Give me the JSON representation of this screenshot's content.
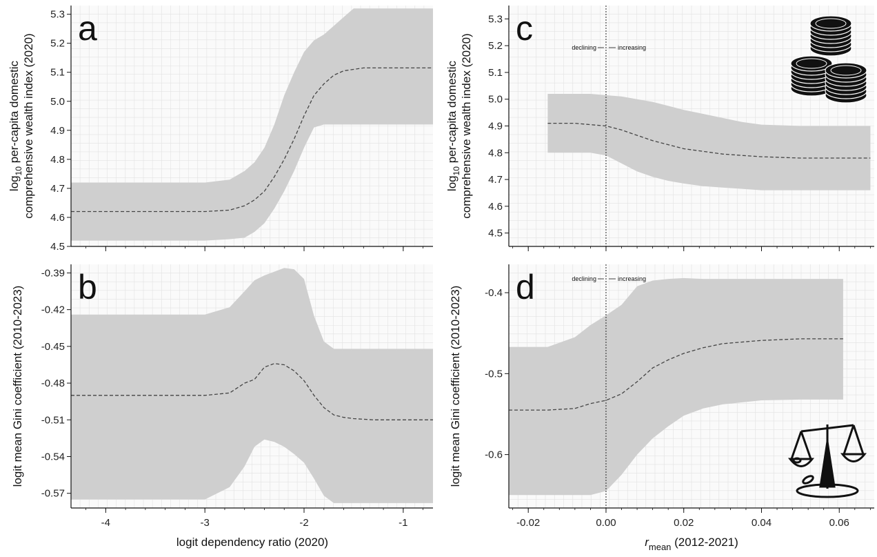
{
  "colors": {
    "band": "#cfcfcf",
    "line": "#444444",
    "grid": "#e2e2e2",
    "axis": "#111111",
    "background": "#fafafa"
  },
  "x_labels": {
    "left": "logit dependency ratio (2020)",
    "right_italic": "r",
    "right_sub": "mean",
    "right_tail": " (2012-2021)"
  },
  "annotations": {
    "declining": "declining",
    "increasing": "increasing"
  },
  "icons": {
    "coins": "coin-stack-icon",
    "scale": "balance-scale-icon"
  },
  "chart_data": [
    {
      "id": "a",
      "letter": "a",
      "type": "line",
      "xlim": [
        -4.35,
        -0.7
      ],
      "ylim": [
        4.5,
        5.33
      ],
      "xticks": [
        -4,
        -3,
        -2,
        -1
      ],
      "show_xticklabels": false,
      "yticks": [
        4.5,
        4.6,
        4.7,
        4.8,
        4.9,
        5.0,
        5.1,
        5.2,
        5.3
      ],
      "yticklabels": [
        "4.5",
        "4.6",
        "4.7",
        "4.8",
        "4.9",
        "5.0",
        "5.1",
        "5.2",
        "5.3"
      ],
      "ylabel": "log10 per-capita domestic comprehensive wealth index (2020)",
      "ylabel_line1": "log",
      "ylabel_sub": "10",
      "ylabel_rest": " per-capita domestic",
      "ylabel_line2": "comprehensive wealth index (2020)",
      "vline": null,
      "x": [
        -4.35,
        -3.0,
        -2.75,
        -2.6,
        -2.5,
        -2.4,
        -2.3,
        -2.2,
        -2.1,
        -2.0,
        -1.9,
        -1.8,
        -1.7,
        -1.6,
        -1.5,
        -1.4,
        -1.2,
        -1.0,
        -0.7
      ],
      "mean": [
        4.62,
        4.62,
        4.625,
        4.64,
        4.66,
        4.69,
        4.74,
        4.8,
        4.87,
        4.95,
        5.02,
        5.06,
        5.09,
        5.105,
        5.11,
        5.115,
        5.115,
        5.115,
        5.115
      ],
      "upper": [
        4.72,
        4.72,
        4.73,
        4.76,
        4.79,
        4.84,
        4.92,
        5.02,
        5.1,
        5.17,
        5.21,
        5.23,
        5.26,
        5.29,
        5.32,
        5.32,
        5.32,
        5.32,
        5.32
      ],
      "lower": [
        4.52,
        4.52,
        4.525,
        4.53,
        4.55,
        4.58,
        4.63,
        4.69,
        4.76,
        4.84,
        4.91,
        4.92,
        4.92,
        4.92,
        4.92,
        4.92,
        4.92,
        4.92,
        4.92
      ]
    },
    {
      "id": "b",
      "letter": "b",
      "type": "line",
      "xlim": [
        -4.35,
        -0.7
      ],
      "ylim": [
        -0.582,
        -0.383
      ],
      "xticks": [
        -4,
        -3,
        -2,
        -1
      ],
      "show_xticklabels": true,
      "xticklabels": [
        "-4",
        "-3",
        "-2",
        "-1"
      ],
      "yticks": [
        -0.57,
        -0.54,
        -0.51,
        -0.48,
        -0.45,
        -0.42,
        -0.39
      ],
      "yticklabels": [
        "-0.57",
        "-0.54",
        "-0.51",
        "-0.48",
        "-0.45",
        "-0.42",
        "-0.39"
      ],
      "ylabel": "logit mean Gini coefficient (2010-2023)",
      "vline": null,
      "x": [
        -4.35,
        -3.5,
        -3.0,
        -2.75,
        -2.6,
        -2.5,
        -2.4,
        -2.3,
        -2.2,
        -2.1,
        -2.0,
        -1.9,
        -1.8,
        -1.7,
        -1.6,
        -1.5,
        -1.3,
        -1.0,
        -0.7
      ],
      "mean": [
        -0.49,
        -0.49,
        -0.49,
        -0.488,
        -0.48,
        -0.477,
        -0.467,
        -0.464,
        -0.465,
        -0.47,
        -0.478,
        -0.49,
        -0.5,
        -0.506,
        -0.508,
        -0.509,
        -0.51,
        -0.51,
        -0.51
      ],
      "upper": [
        -0.424,
        -0.424,
        -0.424,
        -0.418,
        -0.405,
        -0.396,
        -0.392,
        -0.389,
        -0.386,
        -0.387,
        -0.395,
        -0.425,
        -0.446,
        -0.452,
        -0.452,
        -0.452,
        -0.452,
        -0.452,
        -0.452
      ],
      "lower": [
        -0.575,
        -0.575,
        -0.575,
        -0.565,
        -0.548,
        -0.532,
        -0.526,
        -0.528,
        -0.532,
        -0.538,
        -0.545,
        -0.558,
        -0.572,
        -0.578,
        -0.578,
        -0.578,
        -0.578,
        -0.578,
        -0.578
      ]
    },
    {
      "id": "c",
      "letter": "c",
      "type": "line",
      "xlim": [
        -0.025,
        0.069
      ],
      "ylim": [
        4.45,
        5.35
      ],
      "xticks": [
        -0.02,
        0.0,
        0.02,
        0.04,
        0.06
      ],
      "show_xticklabels": false,
      "yticks": [
        4.5,
        4.6,
        4.7,
        4.8,
        4.9,
        5.0,
        5.1,
        5.2,
        5.3
      ],
      "yticklabels": [
        "4.5",
        "4.6",
        "4.7",
        "4.8",
        "4.9",
        "5.0",
        "5.1",
        "5.2",
        "5.3"
      ],
      "ylabel": "log10 per-capita domestic comprehensive wealth index (2020)",
      "ylabel_line1": "log",
      "ylabel_sub": "10",
      "ylabel_rest": " per-capita domestic",
      "ylabel_line2": "comprehensive wealth index (2020)",
      "vline": 0.0,
      "x": [
        -0.015,
        -0.008,
        -0.004,
        0.0,
        0.004,
        0.008,
        0.012,
        0.016,
        0.02,
        0.025,
        0.03,
        0.035,
        0.04,
        0.05,
        0.06,
        0.068
      ],
      "mean": [
        4.91,
        4.91,
        4.905,
        4.9,
        4.885,
        4.865,
        4.845,
        4.83,
        4.815,
        4.805,
        4.795,
        4.79,
        4.785,
        4.78,
        4.78,
        4.78
      ],
      "upper": [
        5.02,
        5.02,
        5.02,
        5.015,
        5.01,
        5.0,
        4.99,
        4.975,
        4.96,
        4.945,
        4.93,
        4.915,
        4.905,
        4.9,
        4.9,
        4.9
      ],
      "lower": [
        4.8,
        4.8,
        4.8,
        4.79,
        4.76,
        4.73,
        4.71,
        4.695,
        4.685,
        4.675,
        4.67,
        4.665,
        4.66,
        4.66,
        4.66,
        4.66
      ]
    },
    {
      "id": "d",
      "letter": "d",
      "type": "line",
      "xlim": [
        -0.025,
        0.069
      ],
      "ylim": [
        -0.666,
        -0.365
      ],
      "xticks": [
        -0.02,
        0.0,
        0.02,
        0.04,
        0.06
      ],
      "show_xticklabels": true,
      "xticklabels": [
        "-0.02",
        "0.00",
        "0.02",
        "0.04",
        "0.06"
      ],
      "yticks": [
        -0.6,
        -0.5,
        -0.4
      ],
      "yticklabels": [
        "-0.6",
        "-0.5",
        "-0.4"
      ],
      "ylabel": "logit mean Gini coefficient (2010-2023)",
      "vline": 0.0,
      "x": [
        -0.025,
        -0.015,
        -0.008,
        -0.004,
        0.0,
        0.004,
        0.008,
        0.012,
        0.016,
        0.02,
        0.025,
        0.03,
        0.04,
        0.05,
        0.061
      ],
      "mean": [
        -0.545,
        -0.545,
        -0.543,
        -0.537,
        -0.533,
        -0.525,
        -0.51,
        -0.493,
        -0.483,
        -0.475,
        -0.468,
        -0.463,
        -0.459,
        -0.457,
        -0.457
      ],
      "upper": [
        -0.467,
        -0.467,
        -0.455,
        -0.44,
        -0.428,
        -0.415,
        -0.392,
        -0.385,
        -0.383,
        -0.382,
        -0.383,
        -0.383,
        -0.383,
        -0.383,
        -0.383
      ],
      "lower": [
        -0.65,
        -0.65,
        -0.65,
        -0.65,
        -0.645,
        -0.625,
        -0.6,
        -0.58,
        -0.565,
        -0.552,
        -0.543,
        -0.538,
        -0.533,
        -0.532,
        -0.532
      ]
    }
  ]
}
